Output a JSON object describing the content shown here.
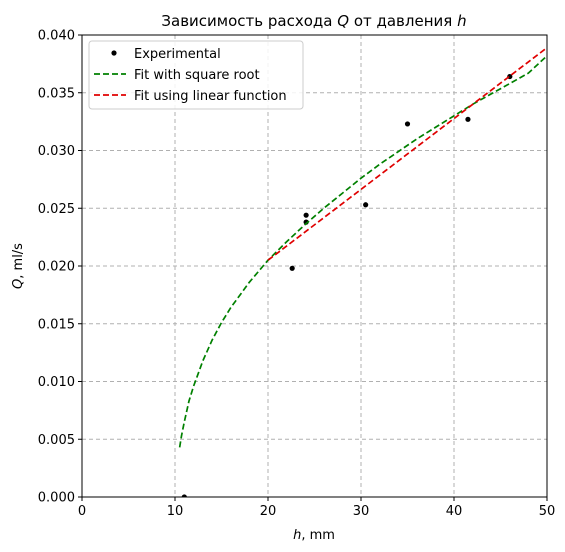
{
  "chart_data": {
    "type": "scatter",
    "title": "Зависимость расхода Q от давления h",
    "title_parts": {
      "before_q": "Зависимость расхода ",
      "q": "Q",
      "middle": " от давления ",
      "h": "h"
    },
    "xlabel": "h, mm",
    "xlabel_parts": {
      "var": "h",
      "unit": ", mm"
    },
    "ylabel": "Q, ml/s",
    "ylabel_parts": {
      "var": "Q",
      "unit": ", ml/s"
    },
    "xlim": [
      0,
      50
    ],
    "ylim": [
      0,
      0.04
    ],
    "xticks": [
      "0",
      "10",
      "20",
      "30",
      "40",
      "50"
    ],
    "yticks": [
      "0.000",
      "0.005",
      "0.010",
      "0.015",
      "0.020",
      "0.025",
      "0.030",
      "0.035",
      "0.040"
    ],
    "grid": true,
    "legend_position": "top-left",
    "series": [
      {
        "name": "Experimental",
        "kind": "points",
        "color": "#000000",
        "x": [
          11.0,
          22.6,
          24.1,
          24.1,
          30.5,
          35.0,
          41.5,
          46.0
        ],
        "y": [
          0.0,
          0.0198,
          0.0238,
          0.0244,
          0.0253,
          0.0323,
          0.0327,
          0.0364
        ]
      },
      {
        "name": "Fit with square root",
        "kind": "dashed-line",
        "color": "#008000",
        "x": [
          10.5,
          10.7,
          11.0,
          11.5,
          12,
          13,
          14,
          15,
          16,
          18,
          20,
          22,
          24,
          26,
          28,
          30,
          32,
          34,
          36,
          38,
          40,
          42,
          44,
          46,
          48,
          50
        ],
        "y": [
          0.0043,
          0.0053,
          0.0065,
          0.0083,
          0.0096,
          0.0118,
          0.0136,
          0.0151,
          0.0164,
          0.0186,
          0.0205,
          0.0221,
          0.0236,
          0.025,
          0.0263,
          0.0276,
          0.0288,
          0.0299,
          0.031,
          0.032,
          0.033,
          0.034,
          0.0349,
          0.0358,
          0.0367,
          0.0382
        ]
      },
      {
        "name": "Fit using linear function",
        "kind": "dashed-line",
        "color": "#e00000",
        "x": [
          20,
          50
        ],
        "y": [
          0.0205,
          0.0389
        ]
      }
    ]
  }
}
